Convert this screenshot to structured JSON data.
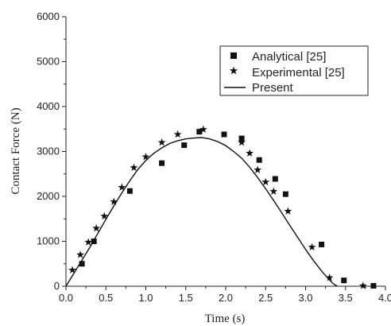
{
  "chart_data": {
    "type": "line",
    "xlabel": "Time (s)",
    "ylabel": "Contact Force (N)",
    "xlim": [
      0.0,
      4.0
    ],
    "ylim": [
      0,
      6000
    ],
    "x_ticks": [
      "0.0",
      "0.5",
      "1.0",
      "1.5",
      "2.0",
      "2.5",
      "3.0",
      "3.5",
      "4.0"
    ],
    "y_ticks": [
      "0",
      "1000",
      "2000",
      "3000",
      "4000",
      "5000",
      "6000"
    ],
    "grid": false,
    "legend_position": "top-right",
    "series": [
      {
        "name": "Analytical [25]",
        "marker": "square",
        "color": "#111111",
        "points": [
          [
            0.2,
            500
          ],
          [
            0.35,
            1000
          ],
          [
            0.8,
            2120
          ],
          [
            1.2,
            2740
          ],
          [
            1.48,
            3140
          ],
          [
            1.67,
            3440
          ],
          [
            1.98,
            3380
          ],
          [
            2.2,
            3290
          ],
          [
            2.42,
            2810
          ],
          [
            2.62,
            2390
          ],
          [
            2.75,
            2050
          ],
          [
            3.2,
            930
          ],
          [
            3.48,
            130
          ],
          [
            3.85,
            10
          ]
        ]
      },
      {
        "name": "Experimental [25]",
        "marker": "star",
        "color": "#111111",
        "points": [
          [
            0.08,
            360
          ],
          [
            0.18,
            700
          ],
          [
            0.28,
            980
          ],
          [
            0.38,
            1290
          ],
          [
            0.48,
            1560
          ],
          [
            0.6,
            1880
          ],
          [
            0.7,
            2200
          ],
          [
            0.85,
            2640
          ],
          [
            1.0,
            2880
          ],
          [
            1.2,
            3200
          ],
          [
            1.4,
            3380
          ],
          [
            1.72,
            3490
          ],
          [
            2.2,
            3200
          ],
          [
            2.3,
            2960
          ],
          [
            2.4,
            2590
          ],
          [
            2.5,
            2320
          ],
          [
            2.6,
            2110
          ],
          [
            2.78,
            1670
          ],
          [
            3.08,
            870
          ],
          [
            3.3,
            190
          ],
          [
            3.72,
            10
          ]
        ]
      },
      {
        "name": "Present",
        "marker": "none",
        "color": "#111111",
        "points": [
          [
            0.0,
            0
          ],
          [
            0.1,
            290
          ],
          [
            0.2,
            580
          ],
          [
            0.3,
            870
          ],
          [
            0.4,
            1180
          ],
          [
            0.5,
            1490
          ],
          [
            0.6,
            1790
          ],
          [
            0.7,
            2080
          ],
          [
            0.8,
            2350
          ],
          [
            0.9,
            2600
          ],
          [
            1.0,
            2800
          ],
          [
            1.1,
            2960
          ],
          [
            1.2,
            3080
          ],
          [
            1.3,
            3180
          ],
          [
            1.4,
            3240
          ],
          [
            1.5,
            3280
          ],
          [
            1.6,
            3300
          ],
          [
            1.7,
            3310
          ],
          [
            1.8,
            3280
          ],
          [
            1.9,
            3220
          ],
          [
            2.0,
            3130
          ],
          [
            2.1,
            3000
          ],
          [
            2.2,
            2850
          ],
          [
            2.3,
            2650
          ],
          [
            2.4,
            2420
          ],
          [
            2.5,
            2170
          ],
          [
            2.6,
            1910
          ],
          [
            2.7,
            1640
          ],
          [
            2.8,
            1360
          ],
          [
            2.9,
            1090
          ],
          [
            3.0,
            820
          ],
          [
            3.1,
            570
          ],
          [
            3.2,
            340
          ],
          [
            3.3,
            140
          ],
          [
            3.35,
            50
          ],
          [
            3.4,
            0
          ]
        ]
      }
    ]
  }
}
